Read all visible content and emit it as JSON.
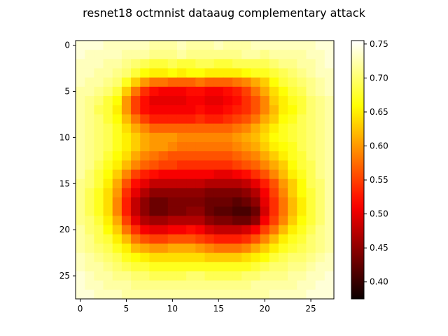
{
  "chart_data": {
    "type": "heatmap",
    "title": "resnet18 octmnist dataaug complementary attack",
    "xlabel": "",
    "ylabel": "",
    "colormap": "hot",
    "rows": 28,
    "cols": 28,
    "x_ticks": [
      0,
      5,
      10,
      15,
      20,
      25
    ],
    "y_ticks": [
      0,
      5,
      10,
      15,
      20,
      25
    ],
    "colorbar": {
      "vmin": 0.375,
      "vmax": 0.755,
      "ticks": [
        "0.40",
        "0.45",
        "0.50",
        "0.55",
        "0.60",
        "0.65",
        "0.70",
        "0.75"
      ],
      "tick_values": [
        0.4,
        0.45,
        0.5,
        0.55,
        0.6,
        0.65,
        0.7,
        0.75
      ]
    },
    "values": [
      [
        0.74,
        0.74,
        0.74,
        0.73,
        0.73,
        0.73,
        0.73,
        0.73,
        0.72,
        0.72,
        0.72,
        0.73,
        0.72,
        0.72,
        0.72,
        0.73,
        0.72,
        0.72,
        0.72,
        0.73,
        0.73,
        0.73,
        0.73,
        0.73,
        0.73,
        0.73,
        0.74,
        0.74
      ],
      [
        0.74,
        0.73,
        0.73,
        0.73,
        0.73,
        0.72,
        0.72,
        0.72,
        0.71,
        0.71,
        0.71,
        0.72,
        0.71,
        0.71,
        0.71,
        0.71,
        0.71,
        0.71,
        0.72,
        0.72,
        0.71,
        0.72,
        0.72,
        0.72,
        0.72,
        0.73,
        0.73,
        0.74
      ],
      [
        0.73,
        0.73,
        0.73,
        0.72,
        0.72,
        0.71,
        0.7,
        0.69,
        0.68,
        0.68,
        0.69,
        0.68,
        0.68,
        0.69,
        0.69,
        0.68,
        0.68,
        0.69,
        0.69,
        0.69,
        0.69,
        0.7,
        0.71,
        0.71,
        0.72,
        0.72,
        0.73,
        0.74
      ],
      [
        0.73,
        0.73,
        0.72,
        0.72,
        0.71,
        0.7,
        0.68,
        0.66,
        0.65,
        0.65,
        0.66,
        0.65,
        0.66,
        0.66,
        0.65,
        0.65,
        0.65,
        0.65,
        0.66,
        0.67,
        0.67,
        0.68,
        0.69,
        0.7,
        0.71,
        0.72,
        0.73,
        0.73
      ],
      [
        0.73,
        0.72,
        0.72,
        0.71,
        0.7,
        0.67,
        0.63,
        0.6,
        0.58,
        0.58,
        0.57,
        0.57,
        0.57,
        0.58,
        0.57,
        0.57,
        0.57,
        0.58,
        0.59,
        0.61,
        0.63,
        0.66,
        0.68,
        0.69,
        0.7,
        0.71,
        0.72,
        0.73
      ],
      [
        0.72,
        0.72,
        0.71,
        0.7,
        0.68,
        0.63,
        0.58,
        0.54,
        0.52,
        0.51,
        0.51,
        0.51,
        0.52,
        0.52,
        0.51,
        0.51,
        0.52,
        0.53,
        0.55,
        0.58,
        0.61,
        0.64,
        0.66,
        0.68,
        0.69,
        0.71,
        0.72,
        0.73
      ],
      [
        0.72,
        0.71,
        0.7,
        0.68,
        0.66,
        0.6,
        0.55,
        0.52,
        0.5,
        0.5,
        0.5,
        0.5,
        0.51,
        0.51,
        0.5,
        0.5,
        0.51,
        0.52,
        0.54,
        0.56,
        0.59,
        0.63,
        0.65,
        0.67,
        0.68,
        0.7,
        0.71,
        0.72
      ],
      [
        0.72,
        0.71,
        0.69,
        0.68,
        0.65,
        0.6,
        0.55,
        0.52,
        0.51,
        0.51,
        0.51,
        0.51,
        0.51,
        0.52,
        0.51,
        0.51,
        0.52,
        0.53,
        0.54,
        0.56,
        0.59,
        0.62,
        0.65,
        0.66,
        0.68,
        0.7,
        0.71,
        0.72
      ],
      [
        0.72,
        0.71,
        0.7,
        0.68,
        0.66,
        0.62,
        0.58,
        0.55,
        0.53,
        0.53,
        0.53,
        0.53,
        0.53,
        0.54,
        0.53,
        0.53,
        0.54,
        0.55,
        0.56,
        0.58,
        0.61,
        0.63,
        0.66,
        0.67,
        0.69,
        0.7,
        0.71,
        0.72
      ],
      [
        0.72,
        0.71,
        0.7,
        0.69,
        0.67,
        0.64,
        0.61,
        0.59,
        0.57,
        0.57,
        0.57,
        0.57,
        0.57,
        0.57,
        0.57,
        0.57,
        0.57,
        0.58,
        0.59,
        0.61,
        0.63,
        0.65,
        0.67,
        0.68,
        0.69,
        0.7,
        0.71,
        0.72
      ],
      [
        0.72,
        0.71,
        0.7,
        0.69,
        0.67,
        0.65,
        0.63,
        0.61,
        0.6,
        0.6,
        0.6,
        0.59,
        0.59,
        0.59,
        0.59,
        0.59,
        0.59,
        0.6,
        0.61,
        0.62,
        0.64,
        0.66,
        0.67,
        0.68,
        0.69,
        0.7,
        0.71,
        0.72
      ],
      [
        0.72,
        0.71,
        0.7,
        0.69,
        0.67,
        0.65,
        0.63,
        0.61,
        0.6,
        0.6,
        0.59,
        0.58,
        0.58,
        0.58,
        0.58,
        0.58,
        0.58,
        0.59,
        0.6,
        0.61,
        0.63,
        0.65,
        0.66,
        0.67,
        0.69,
        0.7,
        0.71,
        0.72
      ],
      [
        0.72,
        0.71,
        0.7,
        0.68,
        0.66,
        0.64,
        0.61,
        0.59,
        0.58,
        0.57,
        0.56,
        0.56,
        0.56,
        0.56,
        0.56,
        0.56,
        0.56,
        0.57,
        0.58,
        0.59,
        0.61,
        0.63,
        0.65,
        0.67,
        0.68,
        0.7,
        0.71,
        0.72
      ],
      [
        0.72,
        0.71,
        0.69,
        0.67,
        0.65,
        0.62,
        0.59,
        0.57,
        0.56,
        0.55,
        0.55,
        0.54,
        0.54,
        0.54,
        0.54,
        0.54,
        0.54,
        0.55,
        0.56,
        0.57,
        0.59,
        0.61,
        0.63,
        0.66,
        0.68,
        0.69,
        0.71,
        0.72
      ],
      [
        0.72,
        0.7,
        0.68,
        0.66,
        0.63,
        0.59,
        0.55,
        0.53,
        0.52,
        0.51,
        0.51,
        0.51,
        0.51,
        0.51,
        0.51,
        0.5,
        0.5,
        0.51,
        0.52,
        0.54,
        0.56,
        0.59,
        0.62,
        0.65,
        0.67,
        0.69,
        0.71,
        0.72
      ],
      [
        0.71,
        0.7,
        0.68,
        0.65,
        0.61,
        0.56,
        0.52,
        0.5,
        0.48,
        0.48,
        0.48,
        0.48,
        0.48,
        0.48,
        0.47,
        0.47,
        0.47,
        0.47,
        0.48,
        0.5,
        0.53,
        0.56,
        0.6,
        0.63,
        0.66,
        0.69,
        0.7,
        0.72
      ],
      [
        0.71,
        0.69,
        0.67,
        0.64,
        0.6,
        0.54,
        0.5,
        0.47,
        0.45,
        0.45,
        0.45,
        0.45,
        0.45,
        0.45,
        0.44,
        0.44,
        0.44,
        0.44,
        0.45,
        0.47,
        0.51,
        0.55,
        0.59,
        0.63,
        0.66,
        0.68,
        0.7,
        0.72
      ],
      [
        0.71,
        0.69,
        0.67,
        0.64,
        0.59,
        0.53,
        0.48,
        0.45,
        0.43,
        0.43,
        0.44,
        0.44,
        0.44,
        0.44,
        0.43,
        0.43,
        0.43,
        0.42,
        0.43,
        0.45,
        0.5,
        0.54,
        0.58,
        0.62,
        0.65,
        0.68,
        0.7,
        0.72
      ],
      [
        0.71,
        0.69,
        0.67,
        0.64,
        0.59,
        0.53,
        0.48,
        0.45,
        0.43,
        0.43,
        0.44,
        0.44,
        0.45,
        0.45,
        0.43,
        0.42,
        0.42,
        0.41,
        0.41,
        0.43,
        0.49,
        0.54,
        0.58,
        0.62,
        0.65,
        0.68,
        0.7,
        0.72
      ],
      [
        0.71,
        0.7,
        0.68,
        0.65,
        0.61,
        0.55,
        0.5,
        0.47,
        0.46,
        0.46,
        0.47,
        0.47,
        0.47,
        0.47,
        0.45,
        0.44,
        0.44,
        0.43,
        0.43,
        0.45,
        0.51,
        0.55,
        0.59,
        0.63,
        0.66,
        0.68,
        0.7,
        0.72
      ],
      [
        0.72,
        0.7,
        0.69,
        0.66,
        0.63,
        0.58,
        0.54,
        0.51,
        0.5,
        0.5,
        0.51,
        0.51,
        0.52,
        0.51,
        0.49,
        0.48,
        0.48,
        0.48,
        0.49,
        0.51,
        0.55,
        0.58,
        0.62,
        0.65,
        0.67,
        0.69,
        0.71,
        0.72
      ],
      [
        0.72,
        0.71,
        0.69,
        0.68,
        0.65,
        0.62,
        0.58,
        0.56,
        0.55,
        0.55,
        0.56,
        0.56,
        0.56,
        0.55,
        0.54,
        0.53,
        0.53,
        0.53,
        0.54,
        0.56,
        0.59,
        0.62,
        0.65,
        0.67,
        0.68,
        0.7,
        0.71,
        0.72
      ],
      [
        0.72,
        0.71,
        0.7,
        0.69,
        0.67,
        0.65,
        0.62,
        0.61,
        0.6,
        0.6,
        0.61,
        0.61,
        0.61,
        0.6,
        0.59,
        0.58,
        0.58,
        0.58,
        0.59,
        0.61,
        0.63,
        0.65,
        0.67,
        0.68,
        0.69,
        0.7,
        0.71,
        0.72
      ],
      [
        0.73,
        0.72,
        0.71,
        0.7,
        0.69,
        0.67,
        0.66,
        0.65,
        0.64,
        0.64,
        0.64,
        0.64,
        0.64,
        0.64,
        0.63,
        0.63,
        0.63,
        0.63,
        0.64,
        0.65,
        0.66,
        0.68,
        0.69,
        0.7,
        0.7,
        0.71,
        0.72,
        0.73
      ],
      [
        0.73,
        0.72,
        0.72,
        0.71,
        0.7,
        0.69,
        0.68,
        0.68,
        0.67,
        0.67,
        0.67,
        0.67,
        0.67,
        0.67,
        0.67,
        0.67,
        0.67,
        0.67,
        0.67,
        0.68,
        0.69,
        0.7,
        0.7,
        0.71,
        0.71,
        0.72,
        0.73,
        0.73
      ],
      [
        0.74,
        0.73,
        0.72,
        0.72,
        0.71,
        0.71,
        0.7,
        0.7,
        0.69,
        0.69,
        0.69,
        0.69,
        0.7,
        0.7,
        0.69,
        0.69,
        0.69,
        0.69,
        0.7,
        0.7,
        0.71,
        0.71,
        0.71,
        0.72,
        0.72,
        0.73,
        0.73,
        0.74
      ],
      [
        0.74,
        0.73,
        0.73,
        0.72,
        0.72,
        0.72,
        0.71,
        0.71,
        0.71,
        0.71,
        0.71,
        0.71,
        0.71,
        0.71,
        0.71,
        0.71,
        0.71,
        0.71,
        0.71,
        0.72,
        0.72,
        0.72,
        0.72,
        0.72,
        0.73,
        0.73,
        0.74,
        0.74
      ],
      [
        0.74,
        0.74,
        0.73,
        0.73,
        0.73,
        0.72,
        0.72,
        0.72,
        0.72,
        0.72,
        0.72,
        0.72,
        0.72,
        0.72,
        0.72,
        0.72,
        0.72,
        0.72,
        0.72,
        0.72,
        0.72,
        0.73,
        0.73,
        0.73,
        0.73,
        0.74,
        0.74,
        0.74
      ]
    ]
  }
}
